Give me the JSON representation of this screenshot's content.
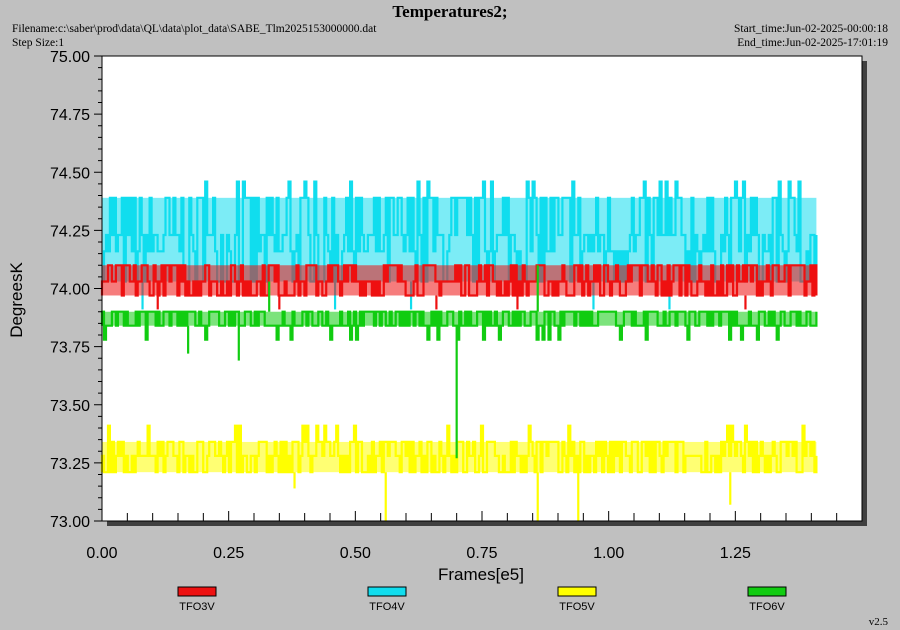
{
  "header": {
    "title": "Temperatures2;",
    "filename": "Filename:c:\\saber\\prod\\data\\QL\\data\\plot_data\\SABE_Tlm2025153000000.dat",
    "step_size": "Step Size:1",
    "start_time": "Start_time:Jun-02-2025-00:00:18",
    "end_time": "End_time:Jun-02-2025-17:01:19"
  },
  "version": "v2.5",
  "chart_data": {
    "type": "line",
    "title": "Temperatures2;",
    "xlabel": "Frames[e5]",
    "ylabel": "DegreesK",
    "xlim": [
      0.0,
      1.5
    ],
    "ylim": [
      73.0,
      75.0
    ],
    "x_ticks": [
      "0.00",
      "0.25",
      "0.50",
      "0.75",
      "1.00",
      "1.25"
    ],
    "y_ticks": [
      "73.00",
      "73.25",
      "73.50",
      "73.75",
      "74.00",
      "74.25",
      "74.50",
      "74.75",
      "75.00"
    ],
    "grid": false,
    "legend_position": "bottom",
    "series": [
      {
        "name": "TFO3V",
        "color": "#ee1111",
        "x_range": [
          0.0,
          1.41
        ],
        "levels": [
          73.97,
          74.03,
          74.1
        ],
        "outliers": [
          {
            "x": 0.11,
            "y": 73.91
          },
          {
            "x": 0.35,
            "y": 73.91
          },
          {
            "x": 0.66,
            "y": 73.91
          },
          {
            "x": 0.82,
            "y": 73.91
          },
          {
            "x": 1.27,
            "y": 73.91
          }
        ]
      },
      {
        "name": "TFO4V",
        "color": "#11ddee",
        "x_range": [
          0.0,
          1.41
        ],
        "levels": [
          74.03,
          74.16,
          74.23,
          74.39
        ],
        "upper_spike": 74.46,
        "outliers": [
          {
            "x": 0.08,
            "y": 73.91
          },
          {
            "x": 0.46,
            "y": 73.91
          },
          {
            "x": 0.61,
            "y": 73.91
          },
          {
            "x": 0.97,
            "y": 73.91
          },
          {
            "x": 1.12,
            "y": 73.91
          }
        ]
      },
      {
        "name": "TFO5V",
        "color": "#ffff00",
        "x_range": [
          0.0,
          1.41
        ],
        "levels": [
          73.21,
          73.28,
          73.34
        ],
        "upper_spike": 73.41,
        "outliers": [
          {
            "x": 0.56,
            "y": 73.0
          },
          {
            "x": 0.86,
            "y": 73.0
          },
          {
            "x": 0.94,
            "y": 73.0
          },
          {
            "x": 0.38,
            "y": 73.14
          },
          {
            "x": 1.24,
            "y": 73.07
          }
        ]
      },
      {
        "name": "TFO6V",
        "color": "#11cc11",
        "x_range": [
          0.0,
          1.41
        ],
        "levels": [
          73.84,
          73.9
        ],
        "lower_spike": 73.78,
        "outliers": [
          {
            "x": 0.7,
            "y": 73.27
          },
          {
            "x": 0.27,
            "y": 73.69
          },
          {
            "x": 0.17,
            "y": 73.72
          },
          {
            "x": 0.33,
            "y": 74.03
          },
          {
            "x": 0.86,
            "y": 74.1
          }
        ]
      }
    ]
  }
}
